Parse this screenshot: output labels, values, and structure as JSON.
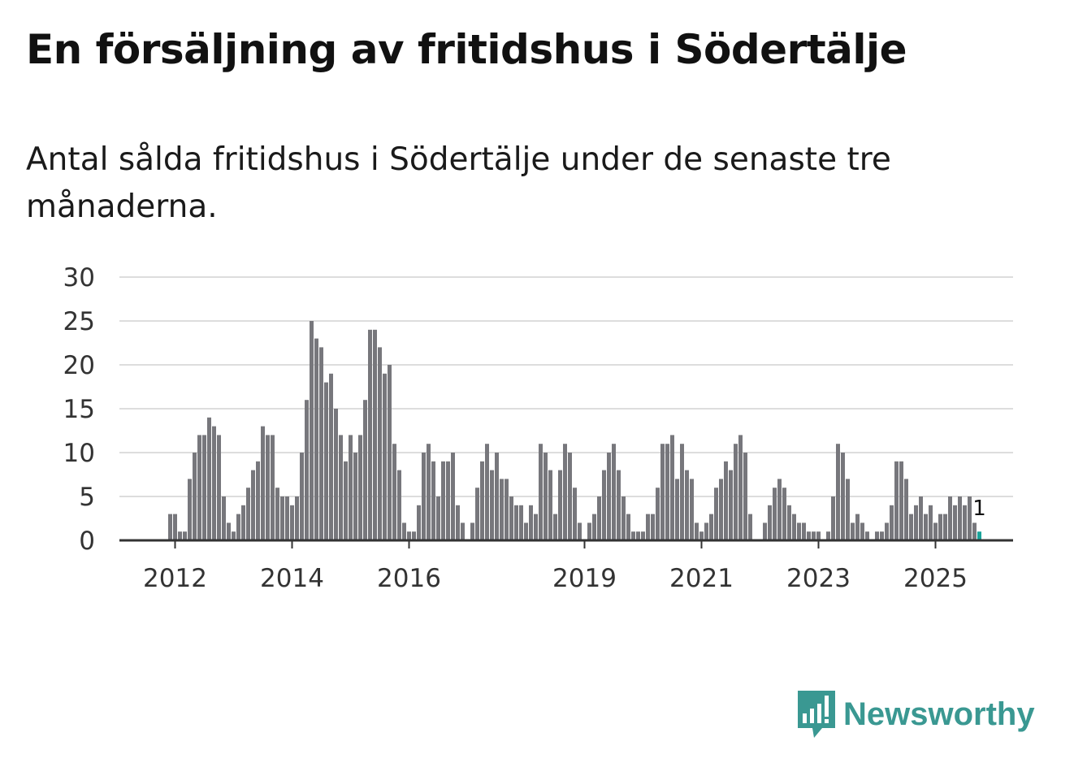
{
  "header": {
    "title": "En försäljning av fritidshus i Södertälje",
    "subtitle": "Antal sålda fritidshus i Södertälje under de senaste tre månaderna."
  },
  "brand": {
    "name": "Newsworthy",
    "color": "#3a9892",
    "icon": "newsworthy-logo-icon"
  },
  "colors": {
    "bar": "#77777c",
    "highlight": "#1aa39a",
    "grid": "#dddddd",
    "axis": "#333333"
  },
  "chart_data": {
    "type": "bar",
    "title": "En försäljning av fritidshus i Södertälje",
    "xlabel": "",
    "ylabel": "",
    "ylim": [
      0,
      30
    ],
    "yticks": [
      0,
      5,
      10,
      15,
      20,
      25,
      30
    ],
    "xticks": [
      {
        "label": "2012",
        "index": 10
      },
      {
        "label": "2014",
        "index": 34
      },
      {
        "label": "2016",
        "index": 58
      },
      {
        "label": "2019",
        "index": 94
      },
      {
        "label": "2021",
        "index": 118
      },
      {
        "label": "2023",
        "index": 142
      },
      {
        "label": "2025",
        "index": 166
      }
    ],
    "grid": true,
    "start": "2011-01",
    "frequency": "monthly",
    "values": [
      0,
      0,
      0,
      0,
      0,
      0,
      0,
      0,
      0,
      3,
      3,
      1,
      1,
      7,
      10,
      12,
      12,
      14,
      13,
      12,
      5,
      2,
      1,
      3,
      4,
      6,
      8,
      9,
      13,
      12,
      12,
      6,
      5,
      5,
      4,
      5,
      10,
      16,
      25,
      23,
      22,
      18,
      19,
      15,
      12,
      9,
      12,
      10,
      12,
      16,
      24,
      24,
      22,
      19,
      20,
      11,
      8,
      2,
      1,
      1,
      4,
      10,
      11,
      9,
      5,
      9,
      9,
      10,
      4,
      2,
      0,
      2,
      6,
      9,
      11,
      8,
      10,
      7,
      7,
      5,
      4,
      4,
      2,
      4,
      3,
      11,
      10,
      8,
      3,
      8,
      11,
      10,
      6,
      2,
      0,
      2,
      3,
      5,
      8,
      10,
      11,
      8,
      5,
      3,
      1,
      1,
      1,
      3,
      3,
      6,
      11,
      11,
      12,
      7,
      11,
      8,
      7,
      2,
      1,
      2,
      3,
      6,
      7,
      9,
      8,
      11,
      12,
      10,
      3,
      0,
      0,
      2,
      4,
      6,
      7,
      6,
      4,
      3,
      2,
      2,
      1,
      1,
      1,
      0,
      1,
      5,
      11,
      10,
      7,
      2,
      3,
      2,
      1,
      0,
      1,
      1,
      2,
      4,
      9,
      9,
      7,
      3,
      4,
      5,
      3,
      4,
      2,
      3,
      3,
      5,
      4,
      5,
      4,
      5,
      2,
      1
    ],
    "highlight": {
      "index": 175,
      "value": 1,
      "label": "1"
    }
  }
}
